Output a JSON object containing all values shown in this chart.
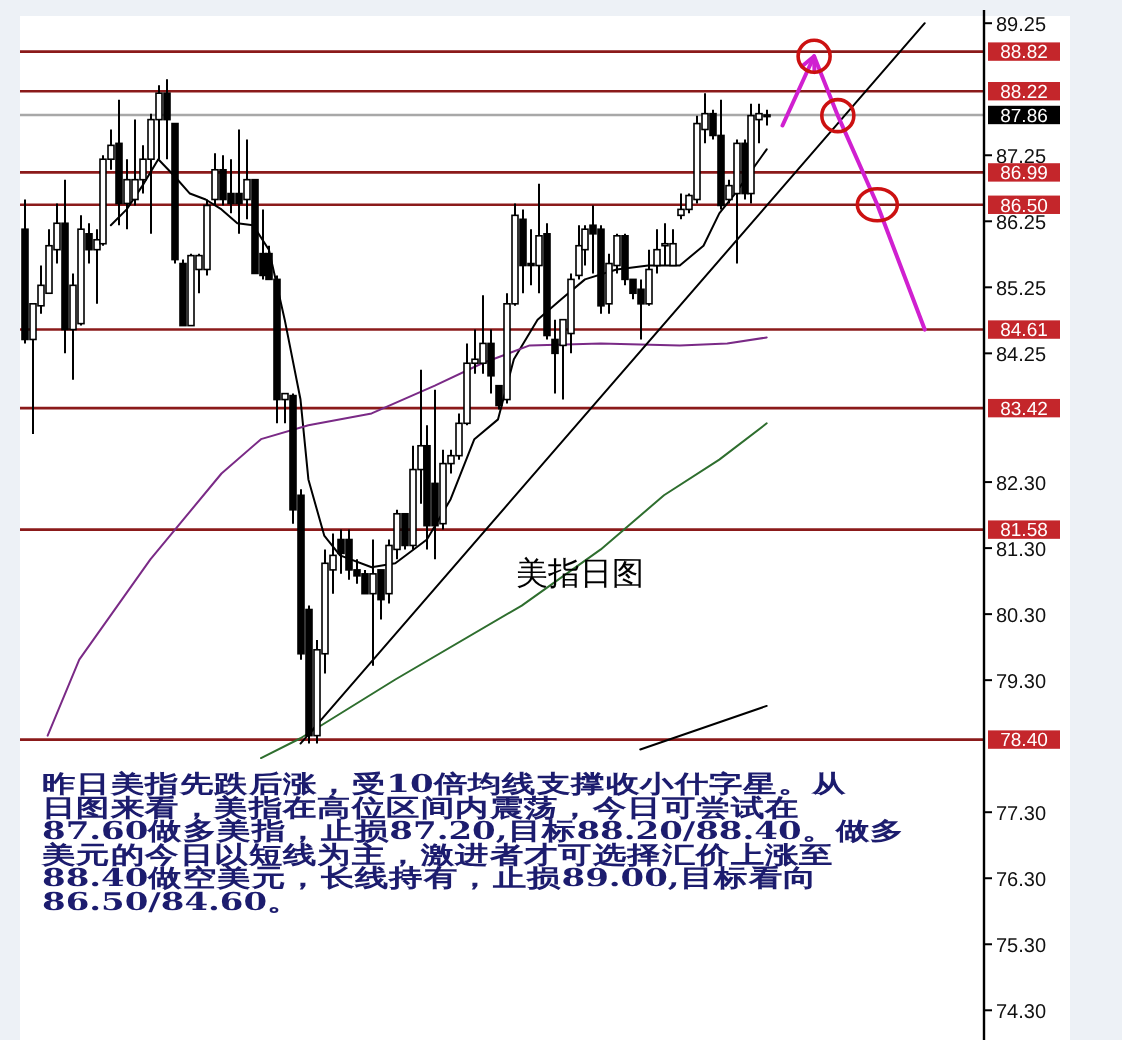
{
  "chart_data": {
    "type": "candlestick",
    "categories": [
      null,
      null,
      null,
      null,
      null,
      null,
      null,
      null,
      null,
      null,
      null,
      null,
      null,
      null,
      null,
      null,
      null,
      null,
      null,
      null,
      null,
      null,
      null,
      null,
      null,
      null,
      null,
      null,
      null,
      null,
      null,
      null,
      null,
      null,
      null,
      null,
      null,
      null,
      null,
      null,
      null,
      null,
      null,
      null,
      null,
      null,
      null,
      null,
      null,
      null,
      null,
      null,
      null,
      null,
      null,
      null,
      null,
      null,
      null,
      null,
      null,
      null,
      null,
      null,
      null,
      null,
      null,
      null,
      null,
      null,
      null,
      null,
      null,
      null,
      null,
      null,
      null,
      null,
      null,
      null,
      null,
      null,
      null,
      null,
      null,
      null,
      null,
      null,
      null,
      null,
      null,
      null,
      null,
      null,
      null,
      null,
      null,
      null,
      null,
      null,
      null,
      null,
      null,
      null,
      null,
      null,
      null,
      null,
      null,
      null,
      null,
      null,
      null,
      null,
      null,
      null,
      null,
      null,
      null,
      null,
      null,
      null
    ],
    "ohlc": [
      [
        86.13,
        86.58,
        84.4,
        84.46
      ],
      [
        84.46,
        85.0,
        83.03,
        85.0
      ],
      [
        84.97,
        85.58,
        84.85,
        85.28
      ],
      [
        85.16,
        86.13,
        85.16,
        85.88
      ],
      [
        85.82,
        86.52,
        85.61,
        86.22
      ],
      [
        86.22,
        86.88,
        84.25,
        84.61
      ],
      [
        84.61,
        85.46,
        83.85,
        85.28
      ],
      [
        84.7,
        86.34,
        84.67,
        86.13
      ],
      [
        86.06,
        86.22,
        85.61,
        85.82
      ],
      [
        85.82,
        86.13,
        85.0,
        85.97
      ],
      [
        85.91,
        87.25,
        85.88,
        87.19
      ],
      [
        87.19,
        87.64,
        87.03,
        87.4
      ],
      [
        87.43,
        88.09,
        86.19,
        86.52
      ],
      [
        86.52,
        87.19,
        86.13,
        86.88
      ],
      [
        86.58,
        87.79,
        86.49,
        86.88
      ],
      [
        86.88,
        87.4,
        86.67,
        87.19
      ],
      [
        87.19,
        87.88,
        86.06,
        87.79
      ],
      [
        87.79,
        88.31,
        87.19,
        88.19
      ],
      [
        88.19,
        88.4,
        87.19,
        87.79
      ],
      [
        87.73,
        87.73,
        85.61,
        85.67
      ],
      [
        85.61,
        85.67,
        84.67,
        84.67
      ],
      [
        84.67,
        85.76,
        84.67,
        85.73
      ],
      [
        85.52,
        85.76,
        85.16,
        85.73
      ],
      [
        85.52,
        86.58,
        85.43,
        86.49
      ],
      [
        86.58,
        87.28,
        86.49,
        87.03
      ],
      [
        87.03,
        87.25,
        86.49,
        86.58
      ],
      [
        86.67,
        87.19,
        86.37,
        86.52
      ],
      [
        86.67,
        87.64,
        86.06,
        86.52
      ],
      [
        86.58,
        87.49,
        86.28,
        86.88
      ],
      [
        86.88,
        86.88,
        85.46,
        85.46
      ],
      [
        85.76,
        86.43,
        85.37,
        85.43
      ],
      [
        85.76,
        85.88,
        85.37,
        85.37
      ],
      [
        85.37,
        85.43,
        83.19,
        83.55
      ],
      [
        83.55,
        83.64,
        83.19,
        83.64
      ],
      [
        83.61,
        83.64,
        81.67,
        81.88
      ],
      [
        82.1,
        82.19,
        79.61,
        79.7
      ],
      [
        80.37,
        80.43,
        78.34,
        78.46
      ],
      [
        78.46,
        79.91,
        78.34,
        79.76
      ],
      [
        79.7,
        81.28,
        79.4,
        81.07
      ],
      [
        80.97,
        81.52,
        80.61,
        81.19
      ],
      [
        81.43,
        81.58,
        80.91,
        81.22
      ],
      [
        81.43,
        81.58,
        80.82,
        80.97
      ],
      [
        80.97,
        81.13,
        80.76,
        80.88
      ],
      [
        80.91,
        80.97,
        80.61,
        80.61
      ],
      [
        80.61,
        81.43,
        79.52,
        80.91
      ],
      [
        80.97,
        80.97,
        80.22,
        80.52
      ],
      [
        80.61,
        81.43,
        80.46,
        81.34
      ],
      [
        81.28,
        81.88,
        81.13,
        81.82
      ],
      [
        81.82,
        81.82,
        81.28,
        81.34
      ],
      [
        81.34,
        82.85,
        81.28,
        82.49
      ],
      [
        82.49,
        84.0,
        81.97,
        82.85
      ],
      [
        82.85,
        83.16,
        81.28,
        81.64
      ],
      [
        82.28,
        83.7,
        81.13,
        81.64
      ],
      [
        81.67,
        82.79,
        81.58,
        82.58
      ],
      [
        82.58,
        82.79,
        82.43,
        82.7
      ],
      [
        82.7,
        83.34,
        82.64,
        83.19
      ],
      [
        83.19,
        84.4,
        83.16,
        84.1
      ],
      [
        84.1,
        84.61,
        83.94,
        84.16
      ],
      [
        84.1,
        85.13,
        83.94,
        84.4
      ],
      [
        84.4,
        84.61,
        83.64,
        83.91
      ],
      [
        83.76,
        83.76,
        83.4,
        83.46
      ],
      [
        83.55,
        85.16,
        83.49,
        85.0
      ],
      [
        85.0,
        86.52,
        84.97,
        86.34
      ],
      [
        86.28,
        86.43,
        85.16,
        85.58
      ],
      [
        85.61,
        86.13,
        85.28,
        85.58
      ],
      [
        85.58,
        86.82,
        85.16,
        86.03
      ],
      [
        86.06,
        86.22,
        84.46,
        84.52
      ],
      [
        84.46,
        84.76,
        83.64,
        84.25
      ],
      [
        84.37,
        84.76,
        83.55,
        84.76
      ],
      [
        84.55,
        85.46,
        84.25,
        85.37
      ],
      [
        85.43,
        86.19,
        85.37,
        85.88
      ],
      [
        85.82,
        86.19,
        85.58,
        86.13
      ],
      [
        86.19,
        86.49,
        85.46,
        86.06
      ],
      [
        86.13,
        86.19,
        84.85,
        84.97
      ],
      [
        85.0,
        85.76,
        84.85,
        85.61
      ],
      [
        85.58,
        86.06,
        85.46,
        86.03
      ],
      [
        86.03,
        86.06,
        85.28,
        85.37
      ],
      [
        85.37,
        85.37,
        85.07,
        85.16
      ],
      [
        85.22,
        85.37,
        84.46,
        85.0
      ],
      [
        85.0,
        85.82,
        84.97,
        85.52
      ],
      [
        85.58,
        86.13,
        85.46,
        85.82
      ],
      [
        85.88,
        86.22,
        85.58,
        85.91
      ],
      [
        85.58,
        86.13,
        85.58,
        85.91
      ],
      [
        86.34,
        86.67,
        86.28,
        86.43
      ],
      [
        86.43,
        86.67,
        86.37,
        86.64
      ],
      [
        86.58,
        87.85,
        86.52,
        87.73
      ],
      [
        87.64,
        88.19,
        87.43,
        87.88
      ],
      [
        87.88,
        87.94,
        87.49,
        87.55
      ],
      [
        87.55,
        88.09,
        86.43,
        86.49
      ],
      [
        86.58,
        86.88,
        86.52,
        86.79
      ],
      [
        86.67,
        87.49,
        85.61,
        87.43
      ],
      [
        87.43,
        87.49,
        86.58,
        86.67
      ],
      [
        86.67,
        88.03,
        86.52,
        87.85
      ],
      [
        87.79,
        88.03,
        87.43,
        87.88
      ],
      [
        87.85,
        87.94,
        87.7,
        87.86
      ],
      null,
      null,
      null,
      null,
      null,
      null,
      null,
      null,
      null,
      null,
      null,
      null,
      null,
      null,
      null,
      null,
      null,
      null,
      null,
      null,
      null,
      null,
      null,
      null,
      null,
      null,
      null
    ],
    "ylim": [
      73.85,
      89.45
    ],
    "yticks": [
      89.25,
      87.25,
      86.25,
      85.25,
      84.25,
      {
        "value": 82.3,
        "label": "82.30"
      },
      {
        "value": 81.3,
        "label": "81.30"
      },
      {
        "value": 80.3,
        "label": "80.30"
      },
      {
        "value": 79.3,
        "label": "79.30"
      },
      {
        "value": 77.3,
        "label": "77.30"
      },
      {
        "value": 76.3,
        "label": "76.30"
      },
      {
        "value": 75.3,
        "label": "75.30"
      },
      {
        "value": 74.3,
        "label": "74.30"
      }
    ],
    "tick_labels": "y",
    "series": [
      {
        "type": "line",
        "color": "#000000",
        "values": [
          null,
          null,
          null,
          null,
          null,
          null,
          null,
          null,
          null,
          null,
          null,
          86.19,
          null,
          86.43,
          null,
          86.79,
          null,
          87.19,
          null,
          86.94,
          null,
          86.67,
          null,
          86.58,
          null,
          86.43,
          null,
          86.22,
          null,
          86.19,
          null,
          85.82,
          null,
          84.76,
          null,
          83.55,
          82.34,
          null,
          81.49,
          null,
          81.19,
          null,
          null,
          null,
          81.01,
          null,
          null,
          81.07,
          null,
          null,
          null,
          81.43,
          null,
          null,
          82.04,
          null,
          null,
          82.95,
          null,
          null,
          83.25,
          null,
          84.16,
          null,
          null,
          84.76,
          null,
          null,
          85.07,
          null,
          null,
          85.37,
          null,
          null,
          null,
          85.52,
          null,
          null,
          null,
          85.58,
          null,
          null,
          null,
          85.58,
          null,
          null,
          85.88,
          null,
          86.37,
          null,
          86.67,
          null,
          null,
          null,
          87.34,
          null,
          null,
          null,
          null,
          null,
          null,
          null,
          null,
          null,
          null,
          null,
          null,
          null,
          null,
          null,
          null,
          null,
          null,
          null,
          null,
          null,
          null,
          null,
          null,
          null,
          null,
          null
        ]
      },
      {
        "type": "line",
        "color": "#7a2a86",
        "values": [
          null,
          null,
          null,
          78.46,
          null,
          null,
          null,
          79.61,
          null,
          null,
          null,
          null,
          null,
          null,
          null,
          null,
          81.13,
          null,
          null,
          null,
          null,
          null,
          null,
          null,
          null,
          82.43,
          null,
          null,
          null,
          null,
          82.95,
          null,
          null,
          null,
          null,
          null,
          83.16,
          null,
          null,
          null,
          null,
          null,
          null,
          null,
          83.34,
          null,
          null,
          null,
          null,
          null,
          null,
          null,
          83.76,
          null,
          null,
          null,
          null,
          null,
          84.1,
          null,
          null,
          null,
          null,
          null,
          84.37,
          null,
          null,
          null,
          null,
          null,
          null,
          null,
          null,
          84.4,
          null,
          null,
          null,
          null,
          null,
          null,
          null,
          null,
          null,
          84.37,
          null,
          null,
          null,
          null,
          null,
          84.4,
          null,
          null,
          null,
          null,
          84.49,
          null,
          null,
          null,
          null,
          null,
          null,
          null,
          null,
          null,
          null,
          null,
          null,
          null,
          null,
          null,
          null,
          null,
          null,
          null,
          null,
          null,
          null,
          null,
          null,
          null,
          null,
          null
        ]
      },
      {
        "type": "line",
        "color": "#2e6e2e",
        "values": [
          null,
          null,
          null,
          null,
          null,
          null,
          null,
          null,
          null,
          null,
          null,
          null,
          null,
          null,
          null,
          null,
          null,
          null,
          null,
          null,
          null,
          null,
          null,
          null,
          null,
          null,
          null,
          null,
          null,
          null,
          78.12,
          null,
          null,
          null,
          null,
          78.42,
          null,
          null,
          null,
          null,
          null,
          null,
          null,
          null,
          null,
          null,
          null,
          79.31,
          null,
          null,
          null,
          null,
          null,
          null,
          null,
          null,
          null,
          null,
          null,
          null,
          null,
          null,
          null,
          80.43,
          null,
          null,
          null,
          null,
          null,
          null,
          null,
          null,
          null,
          81.28,
          null,
          null,
          null,
          null,
          null,
          null,
          null,
          82.1,
          null,
          null,
          null,
          null,
          null,
          null,
          82.64,
          null,
          null,
          null,
          null,
          null,
          83.19,
          null,
          null,
          null,
          null,
          null,
          null,
          null,
          null,
          null,
          null,
          null,
          null,
          null,
          null,
          null,
          null,
          null,
          null,
          null,
          null,
          null,
          null,
          null,
          null,
          null,
          null,
          null
        ]
      },
      {
        "type": "line",
        "color": "#000000",
        "values": [
          null,
          null,
          null,
          null,
          null,
          null,
          null,
          null,
          null,
          null,
          null,
          null,
          null,
          null,
          null,
          null,
          null,
          null,
          null,
          null,
          null,
          null,
          null,
          null,
          null,
          null,
          null,
          null,
          null,
          null,
          null,
          null,
          null,
          null,
          null,
          78.34,
          null,
          null,
          null,
          null,
          null,
          null,
          null,
          null,
          null,
          null,
          null,
          null,
          null,
          null,
          null,
          null,
          null,
          null,
          null,
          null,
          null,
          null,
          null,
          null,
          null,
          null,
          null,
          null,
          null,
          null,
          null,
          null,
          null,
          null,
          null,
          null,
          null,
          null,
          null,
          null,
          null,
          null,
          null,
          null,
          null,
          null,
          null,
          null,
          null,
          null,
          null,
          null,
          null,
          null,
          null,
          null,
          null,
          null,
          null,
          null,
          null,
          null,
          null,
          null,
          null,
          null,
          null,
          null,
          null,
          null,
          null,
          null,
          null,
          null,
          null,
          null,
          null,
          null,
          89.25,
          null,
          null,
          null,
          null,
          null,
          null,
          null
        ]
      },
      {
        "type": "line",
        "color": "#000000",
        "values": [
          null,
          null,
          null,
          null,
          null,
          null,
          null,
          null,
          null,
          null,
          null,
          null,
          null,
          null,
          null,
          null,
          null,
          null,
          null,
          null,
          null,
          null,
          null,
          null,
          null,
          null,
          null,
          null,
          null,
          null,
          null,
          null,
          null,
          null,
          null,
          null,
          null,
          null,
          null,
          null,
          null,
          null,
          null,
          null,
          null,
          null,
          null,
          null,
          null,
          null,
          null,
          null,
          null,
          null,
          null,
          null,
          null,
          null,
          null,
          null,
          null,
          null,
          null,
          null,
          null,
          null,
          null,
          null,
          null,
          null,
          null,
          null,
          null,
          null,
          null,
          null,
          null,
          null,
          78.25,
          null,
          null,
          null,
          null,
          null,
          null,
          null,
          null,
          null,
          null,
          null,
          null,
          null,
          null,
          null,
          78.91,
          null,
          null,
          null,
          null,
          null,
          null,
          null,
          null,
          null,
          null,
          null,
          null,
          null,
          null,
          null,
          null,
          null,
          null,
          null,
          null,
          null,
          null,
          null,
          null,
          null,
          null,
          null
        ]
      },
      {
        "type": "line",
        "color": "#d020d0",
        "values": [
          null,
          null,
          null,
          null,
          null,
          null,
          null,
          null,
          null,
          null,
          null,
          null,
          null,
          null,
          null,
          null,
          null,
          null,
          null,
          null,
          null,
          null,
          null,
          null,
          null,
          null,
          null,
          null,
          null,
          null,
          null,
          null,
          null,
          null,
          null,
          null,
          null,
          null,
          null,
          null,
          null,
          null,
          null,
          null,
          null,
          null,
          null,
          null,
          null,
          null,
          null,
          null,
          null,
          null,
          null,
          null,
          null,
          null,
          null,
          null,
          null,
          null,
          null,
          null,
          null,
          null,
          null,
          null,
          null,
          null,
          null,
          null,
          null,
          null,
          null,
          null,
          null,
          null,
          null,
          null,
          null,
          null,
          null,
          null,
          null,
          null,
          null,
          null,
          null,
          null,
          null,
          null,
          null,
          null,
          null,
          null,
          87.7,
          null,
          null,
          null,
          88.75,
          null,
          null,
          87.85,
          null,
          null,
          null,
          null,
          86.5,
          null,
          null,
          null,
          null,
          null,
          84.61,
          null,
          null,
          null,
          null,
          null,
          null,
          null
        ]
      }
    ],
    "ref_lines": [
      {
        "axis": "y",
        "value": 88.82,
        "label": "88.82",
        "color": "#8b1a1a"
      },
      {
        "axis": "y",
        "value": 88.22,
        "label": "88.22",
        "color": "#8b1a1a"
      },
      {
        "axis": "y",
        "value": 87.86,
        "label": "87.86",
        "color": "#a8a8a8"
      },
      {
        "axis": "y",
        "value": 86.99,
        "label": "86.99",
        "color": "#8b1a1a"
      },
      {
        "axis": "y",
        "value": 86.5,
        "label": "86.50",
        "color": "#8b1a1a"
      },
      {
        "axis": "y",
        "value": 84.61,
        "label": "84.61",
        "color": "#8b1a1a"
      },
      {
        "axis": "y",
        "value": 83.42,
        "label": "83.42",
        "color": "#8b1a1a"
      },
      {
        "axis": "y",
        "value": 81.58,
        "label": "81.58",
        "color": "#8b1a1a"
      },
      {
        "axis": "y",
        "value": 78.4,
        "label": "78.40",
        "color": "#8b1a1a"
      }
    ],
    "annotations": [
      "美指日图",
      "昨日美指先跌后涨，受10倍均线支撑收小什字星。从",
      "日图来看，美指在高位区间内震荡，今日可尝试在",
      "87.60做多美指，止损87.20,目标88.20/88.40。做多",
      "美元的今日以短线为主，激进者才可选择汇价上涨至",
      "88.40做空美元，长线持有，止损89.00,目标看向",
      "86.50/84.60。"
    ]
  }
}
